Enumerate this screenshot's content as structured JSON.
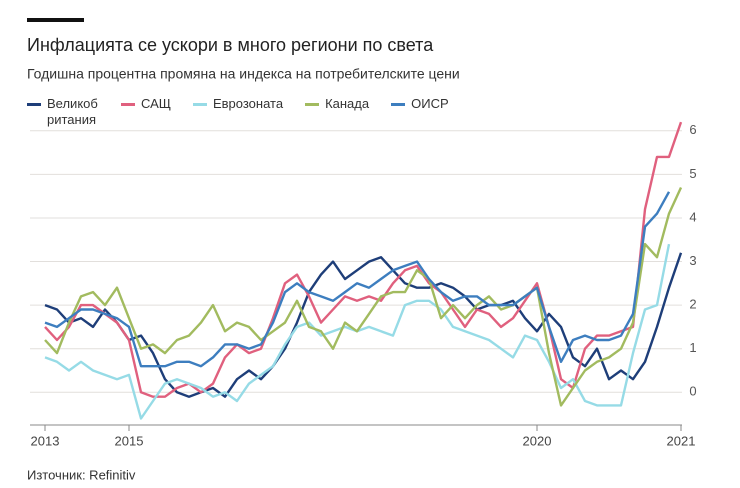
{
  "chart_data": {
    "type": "line",
    "title": "Инфлацията се ускори в много региони по света",
    "subtitle": "Годишна процентна промяна на индекса на потребителските цени",
    "source": "Източник: Refinitiv",
    "categories": [
      "2013",
      null,
      null,
      null,
      null,
      null,
      null,
      "2015",
      null,
      null,
      null,
      null,
      null,
      null,
      null,
      null,
      null,
      null,
      null,
      null,
      null,
      null,
      null,
      null,
      null,
      null,
      null,
      null,
      null,
      null,
      null,
      null,
      null,
      null,
      null,
      null,
      null,
      null,
      null,
      null,
      null,
      "2020",
      null,
      null,
      null,
      null,
      null,
      null,
      null,
      null,
      null,
      null,
      null,
      "2021"
    ],
    "ylim": [
      -0.75,
      6.5
    ],
    "yticks": [
      0,
      1,
      2,
      3,
      4,
      5,
      6
    ],
    "grid": true,
    "series": [
      {
        "name": "Великобритания",
        "color": "#1e3e79",
        "values": [
          2.0,
          1.9,
          1.6,
          1.7,
          1.5,
          1.9,
          1.6,
          1.2,
          1.3,
          0.9,
          0.3,
          0.0,
          -0.1,
          0.0,
          0.1,
          -0.1,
          0.3,
          0.5,
          0.3,
          0.6,
          1.0,
          1.6,
          2.3,
          2.7,
          3.0,
          2.6,
          2.8,
          3.0,
          3.1,
          2.8,
          2.5,
          2.4,
          2.4,
          2.5,
          2.4,
          2.2,
          1.9,
          2.0,
          2.0,
          2.1,
          1.7,
          1.4,
          1.8,
          1.5,
          0.8,
          0.6,
          1.0,
          0.3,
          0.5,
          0.3,
          0.7,
          1.5,
          2.4,
          3.2
        ]
      },
      {
        "name": "САЩ",
        "color": "#e0607e",
        "values": [
          1.5,
          1.2,
          1.5,
          2.0,
          2.0,
          1.8,
          1.6,
          1.2,
          0.0,
          -0.1,
          -0.1,
          0.1,
          0.2,
          0.0,
          0.2,
          0.8,
          1.1,
          0.9,
          1.0,
          1.7,
          2.5,
          2.7,
          2.2,
          1.6,
          1.9,
          2.2,
          2.1,
          2.2,
          2.1,
          2.5,
          2.8,
          2.9,
          2.5,
          2.3,
          1.9,
          1.5,
          1.9,
          1.8,
          1.5,
          1.7,
          2.1,
          2.5,
          1.5,
          0.3,
          0.1,
          1.0,
          1.3,
          1.3,
          1.4,
          1.5,
          4.2,
          5.4,
          5.4,
          6.2
        ]
      },
      {
        "name": "Еврозоната",
        "color": "#96dbe6",
        "values": [
          0.8,
          0.7,
          0.5,
          0.7,
          0.5,
          0.4,
          0.3,
          0.4,
          -0.6,
          -0.2,
          0.2,
          0.3,
          0.2,
          0.1,
          -0.1,
          0.0,
          -0.2,
          0.2,
          0.4,
          0.6,
          1.1,
          1.5,
          1.6,
          1.3,
          1.4,
          1.5,
          1.4,
          1.5,
          1.4,
          1.3,
          2.0,
          2.1,
          2.1,
          1.9,
          1.5,
          1.4,
          1.3,
          1.2,
          1.0,
          0.8,
          1.3,
          1.2,
          0.7,
          0.1,
          0.3,
          -0.2,
          -0.3,
          -0.3,
          -0.3,
          0.9,
          1.9,
          2.0,
          3.4,
          null
        ]
      },
      {
        "name": "Канада",
        "color": "#a2bb5f",
        "values": [
          1.2,
          0.9,
          1.6,
          2.2,
          2.3,
          2.0,
          2.4,
          1.7,
          1.0,
          1.1,
          0.9,
          1.2,
          1.3,
          1.6,
          2.0,
          1.4,
          1.6,
          1.5,
          1.2,
          1.4,
          1.6,
          2.1,
          1.5,
          1.4,
          1.0,
          1.6,
          1.4,
          1.8,
          2.2,
          2.3,
          2.3,
          2.8,
          2.6,
          1.7,
          2.0,
          1.7,
          2.0,
          2.2,
          1.9,
          2.0,
          2.2,
          2.4,
          0.9,
          -0.3,
          0.1,
          0.5,
          0.7,
          0.8,
          1.0,
          1.6,
          3.4,
          3.1,
          4.1,
          4.7
        ]
      },
      {
        "name": "ОИСР",
        "color": "#3d7ebf",
        "values": [
          1.6,
          1.5,
          1.7,
          1.9,
          1.9,
          1.8,
          1.7,
          1.5,
          0.6,
          0.6,
          0.6,
          0.7,
          0.7,
          0.6,
          0.8,
          1.1,
          1.1,
          1.0,
          1.1,
          1.6,
          2.3,
          2.5,
          2.3,
          2.2,
          2.1,
          2.3,
          2.5,
          2.4,
          2.6,
          2.8,
          2.9,
          3.0,
          2.6,
          2.3,
          2.1,
          2.2,
          2.2,
          2.0,
          2.0,
          2.0,
          2.2,
          2.4,
          1.5,
          0.7,
          1.2,
          1.3,
          1.2,
          1.2,
          1.3,
          1.8,
          3.8,
          4.1,
          4.6,
          null
        ]
      }
    ]
  }
}
